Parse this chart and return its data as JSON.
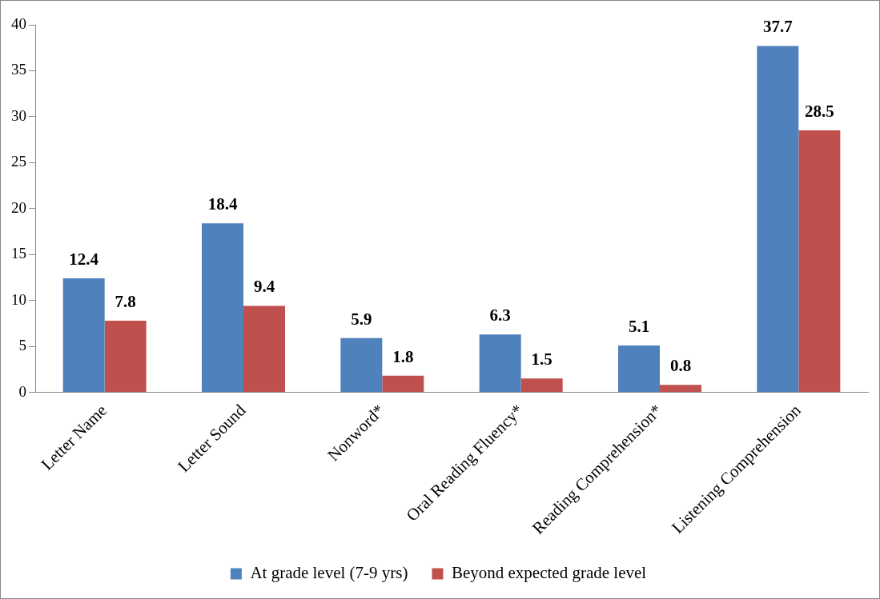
{
  "chart_data": {
    "type": "bar",
    "categories": [
      "Letter Name",
      "Letter Sound",
      "Nonword*",
      "Oral Reading Fluency*",
      "Reading Comprehension*",
      "Listening Comprehension"
    ],
    "series": [
      {
        "name": "At grade level (7-9 yrs)",
        "color": "#4f81bd",
        "values": [
          12.4,
          18.4,
          5.9,
          6.3,
          5.1,
          37.7
        ]
      },
      {
        "name": "Beyond expected grade level",
        "color": "#c0504d",
        "values": [
          7.8,
          9.4,
          1.8,
          1.5,
          0.8,
          28.5
        ]
      }
    ],
    "ylim": [
      0,
      40
    ],
    "yticks": [
      0,
      5,
      10,
      15,
      20,
      25,
      30,
      35,
      40
    ],
    "grid": false,
    "legend": "bottom",
    "data_labels": true
  }
}
